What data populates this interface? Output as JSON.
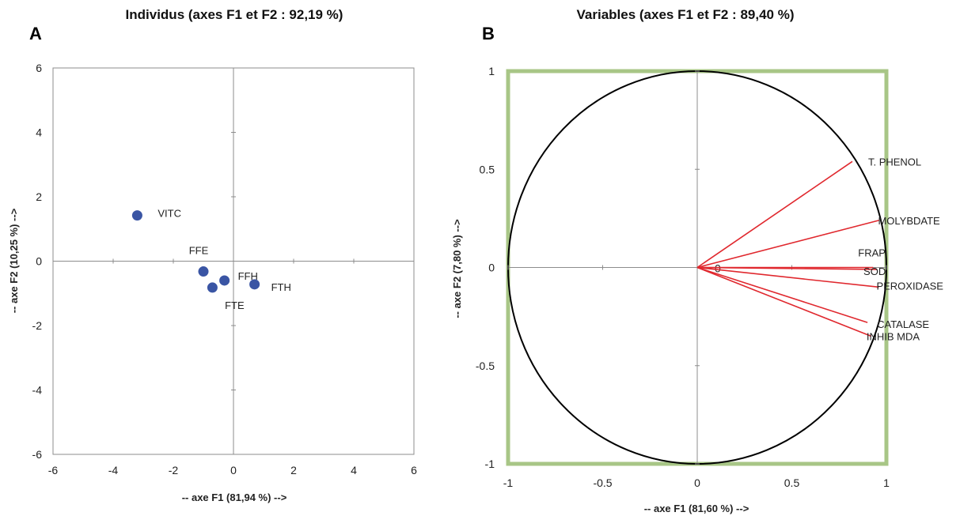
{
  "chart_data": [
    {
      "type": "scatter",
      "panel": "A",
      "title": "Individus (axes F1 et F2 : 92,19 %)",
      "xlabel": "-- axe F1 (81,94 %) -->",
      "ylabel": "-- axe F2 (10,25 %) -->",
      "xlim": [
        -6,
        6
      ],
      "ylim": [
        -6,
        6
      ],
      "xticks": [
        "-6",
        "-4",
        "-2",
        "0",
        "2",
        "4",
        "6"
      ],
      "yticks": [
        "6",
        "4",
        "2",
        "0",
        "-2",
        "-4",
        "-6"
      ],
      "grid": false,
      "point_color": "#3a55a4",
      "points": [
        {
          "label": "VITC",
          "x": -3.2,
          "y": 1.42
        },
        {
          "label": "FFE",
          "x": -1.0,
          "y": -0.32
        },
        {
          "label": "FFH",
          "x": -0.3,
          "y": -0.6
        },
        {
          "label": "FTE",
          "x": -0.7,
          "y": -0.82
        },
        {
          "label": "FTH",
          "x": 0.7,
          "y": -0.72
        }
      ]
    },
    {
      "type": "correlation_circle",
      "panel": "B",
      "title": "Variables (axes F1 et F2 : 89,40 %)",
      "xlabel": "-- axe F1 (81,60 %) -->",
      "ylabel": "-- axe F2 (7,80 %) -->",
      "xlim": [
        -1,
        1
      ],
      "ylim": [
        -1,
        1
      ],
      "xticks": [
        "-1",
        "-0.5",
        "0",
        "0.5",
        "1"
      ],
      "yticks": [
        "1",
        "0.5",
        "0",
        "-0.5",
        "-1"
      ],
      "origin_label": "0",
      "frame_color": "#a8c686",
      "vector_color": "#e0282e",
      "vectors": [
        {
          "label": "T. PHENOL",
          "x": 0.82,
          "y": 0.54
        },
        {
          "label": "MOLYBDATE",
          "x": 0.96,
          "y": 0.24
        },
        {
          "label": "FRAP",
          "x": 0.93,
          "y": 0.0
        },
        {
          "label": "SOD",
          "x": 0.95,
          "y": -0.01
        },
        {
          "label": "PEROXIDASE",
          "x": 0.96,
          "y": -0.1
        },
        {
          "label": "CATALASE",
          "x": 0.9,
          "y": -0.28
        },
        {
          "label": "INHIB MDA",
          "x": 0.92,
          "y": -0.35
        }
      ]
    }
  ]
}
